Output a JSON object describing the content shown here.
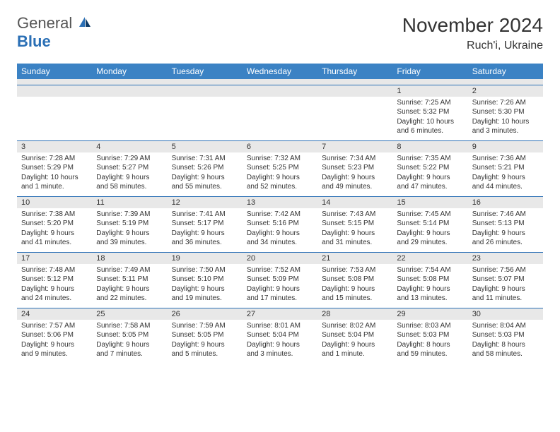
{
  "logo": {
    "general": "General",
    "blue": "Blue"
  },
  "title": "November 2024",
  "location": "Ruch'i, Ukraine",
  "header_bg": "#3b82c4",
  "header_fg": "#ffffff",
  "rule_color": "#2a6fb5",
  "num_bg": "#e8e8e8",
  "days": [
    "Sunday",
    "Monday",
    "Tuesday",
    "Wednesday",
    "Thursday",
    "Friday",
    "Saturday"
  ],
  "weeks": [
    [
      null,
      null,
      null,
      null,
      null,
      {
        "n": "1",
        "sr": "Sunrise: 7:25 AM",
        "ss": "Sunset: 5:32 PM",
        "dl": "Daylight: 10 hours and 6 minutes."
      },
      {
        "n": "2",
        "sr": "Sunrise: 7:26 AM",
        "ss": "Sunset: 5:30 PM",
        "dl": "Daylight: 10 hours and 3 minutes."
      }
    ],
    [
      {
        "n": "3",
        "sr": "Sunrise: 7:28 AM",
        "ss": "Sunset: 5:29 PM",
        "dl": "Daylight: 10 hours and 1 minute."
      },
      {
        "n": "4",
        "sr": "Sunrise: 7:29 AM",
        "ss": "Sunset: 5:27 PM",
        "dl": "Daylight: 9 hours and 58 minutes."
      },
      {
        "n": "5",
        "sr": "Sunrise: 7:31 AM",
        "ss": "Sunset: 5:26 PM",
        "dl": "Daylight: 9 hours and 55 minutes."
      },
      {
        "n": "6",
        "sr": "Sunrise: 7:32 AM",
        "ss": "Sunset: 5:25 PM",
        "dl": "Daylight: 9 hours and 52 minutes."
      },
      {
        "n": "7",
        "sr": "Sunrise: 7:34 AM",
        "ss": "Sunset: 5:23 PM",
        "dl": "Daylight: 9 hours and 49 minutes."
      },
      {
        "n": "8",
        "sr": "Sunrise: 7:35 AM",
        "ss": "Sunset: 5:22 PM",
        "dl": "Daylight: 9 hours and 47 minutes."
      },
      {
        "n": "9",
        "sr": "Sunrise: 7:36 AM",
        "ss": "Sunset: 5:21 PM",
        "dl": "Daylight: 9 hours and 44 minutes."
      }
    ],
    [
      {
        "n": "10",
        "sr": "Sunrise: 7:38 AM",
        "ss": "Sunset: 5:20 PM",
        "dl": "Daylight: 9 hours and 41 minutes."
      },
      {
        "n": "11",
        "sr": "Sunrise: 7:39 AM",
        "ss": "Sunset: 5:19 PM",
        "dl": "Daylight: 9 hours and 39 minutes."
      },
      {
        "n": "12",
        "sr": "Sunrise: 7:41 AM",
        "ss": "Sunset: 5:17 PM",
        "dl": "Daylight: 9 hours and 36 minutes."
      },
      {
        "n": "13",
        "sr": "Sunrise: 7:42 AM",
        "ss": "Sunset: 5:16 PM",
        "dl": "Daylight: 9 hours and 34 minutes."
      },
      {
        "n": "14",
        "sr": "Sunrise: 7:43 AM",
        "ss": "Sunset: 5:15 PM",
        "dl": "Daylight: 9 hours and 31 minutes."
      },
      {
        "n": "15",
        "sr": "Sunrise: 7:45 AM",
        "ss": "Sunset: 5:14 PM",
        "dl": "Daylight: 9 hours and 29 minutes."
      },
      {
        "n": "16",
        "sr": "Sunrise: 7:46 AM",
        "ss": "Sunset: 5:13 PM",
        "dl": "Daylight: 9 hours and 26 minutes."
      }
    ],
    [
      {
        "n": "17",
        "sr": "Sunrise: 7:48 AM",
        "ss": "Sunset: 5:12 PM",
        "dl": "Daylight: 9 hours and 24 minutes."
      },
      {
        "n": "18",
        "sr": "Sunrise: 7:49 AM",
        "ss": "Sunset: 5:11 PM",
        "dl": "Daylight: 9 hours and 22 minutes."
      },
      {
        "n": "19",
        "sr": "Sunrise: 7:50 AM",
        "ss": "Sunset: 5:10 PM",
        "dl": "Daylight: 9 hours and 19 minutes."
      },
      {
        "n": "20",
        "sr": "Sunrise: 7:52 AM",
        "ss": "Sunset: 5:09 PM",
        "dl": "Daylight: 9 hours and 17 minutes."
      },
      {
        "n": "21",
        "sr": "Sunrise: 7:53 AM",
        "ss": "Sunset: 5:08 PM",
        "dl": "Daylight: 9 hours and 15 minutes."
      },
      {
        "n": "22",
        "sr": "Sunrise: 7:54 AM",
        "ss": "Sunset: 5:08 PM",
        "dl": "Daylight: 9 hours and 13 minutes."
      },
      {
        "n": "23",
        "sr": "Sunrise: 7:56 AM",
        "ss": "Sunset: 5:07 PM",
        "dl": "Daylight: 9 hours and 11 minutes."
      }
    ],
    [
      {
        "n": "24",
        "sr": "Sunrise: 7:57 AM",
        "ss": "Sunset: 5:06 PM",
        "dl": "Daylight: 9 hours and 9 minutes."
      },
      {
        "n": "25",
        "sr": "Sunrise: 7:58 AM",
        "ss": "Sunset: 5:05 PM",
        "dl": "Daylight: 9 hours and 7 minutes."
      },
      {
        "n": "26",
        "sr": "Sunrise: 7:59 AM",
        "ss": "Sunset: 5:05 PM",
        "dl": "Daylight: 9 hours and 5 minutes."
      },
      {
        "n": "27",
        "sr": "Sunrise: 8:01 AM",
        "ss": "Sunset: 5:04 PM",
        "dl": "Daylight: 9 hours and 3 minutes."
      },
      {
        "n": "28",
        "sr": "Sunrise: 8:02 AM",
        "ss": "Sunset: 5:04 PM",
        "dl": "Daylight: 9 hours and 1 minute."
      },
      {
        "n": "29",
        "sr": "Sunrise: 8:03 AM",
        "ss": "Sunset: 5:03 PM",
        "dl": "Daylight: 8 hours and 59 minutes."
      },
      {
        "n": "30",
        "sr": "Sunrise: 8:04 AM",
        "ss": "Sunset: 5:03 PM",
        "dl": "Daylight: 8 hours and 58 minutes."
      }
    ]
  ]
}
